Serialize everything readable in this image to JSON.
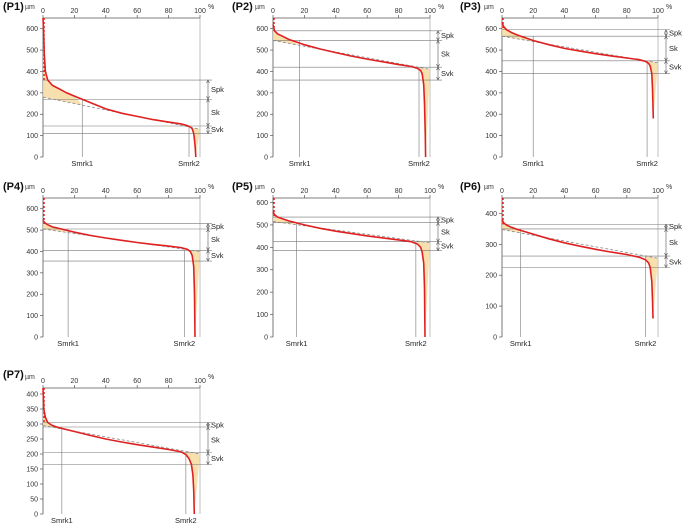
{
  "chart_data": [
    {
      "type": "line",
      "title": "(P1)",
      "ylabel": "µm",
      "xlabel": "%",
      "ylim": [
        0,
        650
      ],
      "yticks": [
        0,
        100,
        200,
        300,
        400,
        500,
        600
      ],
      "xticks": [
        0,
        20,
        40,
        60,
        80,
        100
      ],
      "curve": [
        [
          0,
          650
        ],
        [
          0.3,
          600
        ],
        [
          0.8,
          480
        ],
        [
          1.5,
          400
        ],
        [
          3,
          360
        ],
        [
          6,
          335
        ],
        [
          10,
          320
        ],
        [
          15,
          300
        ],
        [
          20,
          285
        ],
        [
          30,
          255
        ],
        [
          40,
          225
        ],
        [
          50,
          205
        ],
        [
          60,
          190
        ],
        [
          70,
          175
        ],
        [
          80,
          163
        ],
        [
          88,
          155
        ],
        [
          92,
          147
        ],
        [
          94,
          140
        ],
        [
          95,
          132
        ],
        [
          96,
          110
        ],
        [
          96.5,
          80
        ],
        [
          97,
          40
        ],
        [
          97.3,
          0
        ]
      ],
      "line": {
        "start": [
          0,
          280
        ],
        "end": [
          100,
          130
        ]
      },
      "spk": 360,
      "sk_top": 270,
      "sk_bottom": 145,
      "svk": 110,
      "smrk1": 25,
      "smrk2": 93,
      "labels": {
        "spk": "Spk",
        "sk": "Sk",
        "svk": "Svk",
        "smrk1": "Smrk1",
        "smrk2": "Smrk2"
      }
    },
    {
      "type": "line",
      "title": "(P2)",
      "ylabel": "µm",
      "xlabel": "%",
      "ylim": [
        0,
        650
      ],
      "yticks": [
        0,
        100,
        200,
        300,
        400,
        500,
        600
      ],
      "xticks": [
        0,
        20,
        40,
        60,
        80,
        100
      ],
      "curve": [
        [
          0,
          620
        ],
        [
          1,
          590
        ],
        [
          3,
          575
        ],
        [
          6,
          565
        ],
        [
          10,
          550
        ],
        [
          20,
          525
        ],
        [
          30,
          505
        ],
        [
          40,
          488
        ],
        [
          50,
          472
        ],
        [
          60,
          458
        ],
        [
          70,
          445
        ],
        [
          80,
          432
        ],
        [
          88,
          423
        ],
        [
          92,
          415
        ],
        [
          94,
          405
        ],
        [
          95,
          390
        ],
        [
          96,
          340
        ],
        [
          96.5,
          250
        ],
        [
          97,
          100
        ],
        [
          97.2,
          0
        ]
      ],
      "line": {
        "start": [
          0,
          545
        ],
        "end": [
          100,
          410
        ]
      },
      "spk": 590,
      "sk_top": 545,
      "sk_bottom": 420,
      "svk": 360,
      "smrk1": 17,
      "smrk2": 93,
      "labels": {
        "spk": "Spk",
        "sk": "Sk",
        "svk": "Svk",
        "smrk1": "Smrk1",
        "smrk2": "Smrk2"
      }
    },
    {
      "type": "line",
      "title": "(P3)",
      "ylabel": "µm",
      "xlabel": "%",
      "ylim": [
        0,
        650
      ],
      "yticks": [
        0,
        100,
        200,
        300,
        400,
        500,
        600
      ],
      "xticks": [
        0,
        20,
        40,
        60,
        80,
        100
      ],
      "curve": [
        [
          0,
          630
        ],
        [
          1,
          610
        ],
        [
          3,
          595
        ],
        [
          6,
          582
        ],
        [
          10,
          570
        ],
        [
          20,
          545
        ],
        [
          30,
          525
        ],
        [
          40,
          508
        ],
        [
          50,
          495
        ],
        [
          60,
          483
        ],
        [
          70,
          473
        ],
        [
          80,
          463
        ],
        [
          88,
          455
        ],
        [
          92,
          447
        ],
        [
          94,
          438
        ],
        [
          95,
          425
        ],
        [
          96,
          390
        ],
        [
          96.5,
          320
        ],
        [
          97,
          180
        ]
      ],
      "line": {
        "start": [
          0,
          565
        ],
        "end": [
          100,
          440
        ]
      },
      "spk": 595,
      "sk_top": 565,
      "sk_bottom": 450,
      "svk": 390,
      "smrk1": 20,
      "smrk2": 93,
      "labels": {
        "spk": "Spk",
        "sk": "Sk",
        "svk": "Svk",
        "smrk1": "Smrk1",
        "smrk2": "Smrk2"
      }
    },
    {
      "type": "line",
      "title": "(P4)",
      "ylabel": "µm",
      "xlabel": "%",
      "ylim": [
        0,
        650
      ],
      "yticks": [
        0,
        100,
        200,
        300,
        400,
        500,
        600
      ],
      "xticks": [
        0,
        20,
        40,
        60,
        80,
        100
      ],
      "curve": [
        [
          0,
          545
        ],
        [
          1,
          535
        ],
        [
          3,
          525
        ],
        [
          6,
          515
        ],
        [
          10,
          508
        ],
        [
          20,
          490
        ],
        [
          30,
          475
        ],
        [
          40,
          463
        ],
        [
          50,
          452
        ],
        [
          60,
          442
        ],
        [
          70,
          433
        ],
        [
          80,
          425
        ],
        [
          88,
          418
        ],
        [
          92,
          410
        ],
        [
          94,
          398
        ],
        [
          95,
          380
        ],
        [
          96,
          330
        ],
        [
          96.5,
          200
        ],
        [
          96.8,
          0
        ]
      ],
      "line": {
        "start": [
          0,
          505
        ],
        "end": [
          100,
          400
        ]
      },
      "spk": 530,
      "sk_top": 505,
      "sk_bottom": 405,
      "svk": 355,
      "smrk1": 16,
      "smrk2": 90,
      "labels": {
        "spk": "Spk",
        "sk": "Sk",
        "svk": "Svk",
        "smrk1": "Smrk1",
        "smrk2": "Smrk2"
      }
    },
    {
      "type": "line",
      "title": "(P5)",
      "ylabel": "µm",
      "xlabel": "%",
      "ylim": [
        0,
        620
      ],
      "yticks": [
        0,
        100,
        200,
        300,
        400,
        500,
        600
      ],
      "xticks": [
        0,
        20,
        40,
        60,
        80,
        100
      ],
      "curve": [
        [
          0,
          560
        ],
        [
          1,
          545
        ],
        [
          3,
          535
        ],
        [
          6,
          527
        ],
        [
          10,
          518
        ],
        [
          20,
          500
        ],
        [
          30,
          485
        ],
        [
          40,
          472
        ],
        [
          50,
          461
        ],
        [
          60,
          451
        ],
        [
          70,
          442
        ],
        [
          80,
          433
        ],
        [
          88,
          425
        ],
        [
          92,
          415
        ],
        [
          94,
          400
        ],
        [
          95,
          380
        ],
        [
          96,
          330
        ],
        [
          96.5,
          220
        ],
        [
          96.8,
          0
        ]
      ],
      "line": {
        "start": [
          0,
          515
        ],
        "end": [
          100,
          420
        ]
      },
      "spk": 535,
      "sk_top": 510,
      "sk_bottom": 425,
      "svk": 385,
      "smrk1": 15,
      "smrk2": 91,
      "labels": {
        "spk": "Spk",
        "sk": "Sk",
        "svk": "Svk",
        "smrk1": "Smrk1",
        "smrk2": "Smrk2"
      }
    },
    {
      "type": "line",
      "title": "(P6)",
      "ylabel": "µm",
      "xlabel": "%",
      "ylim": [
        0,
        450
      ],
      "yticks": [
        0,
        100,
        200,
        300,
        400
      ],
      "xticks": [
        0,
        20,
        40,
        60,
        80,
        100
      ],
      "curve": [
        [
          0,
          380
        ],
        [
          1,
          370
        ],
        [
          3,
          362
        ],
        [
          6,
          355
        ],
        [
          10,
          348
        ],
        [
          20,
          333
        ],
        [
          30,
          318
        ],
        [
          40,
          305
        ],
        [
          50,
          294
        ],
        [
          60,
          284
        ],
        [
          70,
          275
        ],
        [
          80,
          267
        ],
        [
          88,
          258
        ],
        [
          92,
          250
        ],
        [
          94,
          240
        ],
        [
          95,
          225
        ],
        [
          96,
          180
        ],
        [
          96.5,
          120
        ],
        [
          96.8,
          60
        ]
      ],
      "line": {
        "start": [
          0,
          348
        ],
        "end": [
          100,
          255
        ]
      },
      "spk": 365,
      "sk_top": 350,
      "sk_bottom": 262,
      "svk": 225,
      "smrk1": 12,
      "smrk2": 92,
      "labels": {
        "spk": "Spk",
        "sk": "Sk",
        "svk": "Svk",
        "smrk1": "Smrk1",
        "smrk2": "Smrk2"
      }
    },
    {
      "type": "line",
      "title": "(P7)",
      "ylabel": "µm",
      "xlabel": "%",
      "ylim": [
        0,
        420
      ],
      "yticks": [
        0,
        50,
        100,
        150,
        200,
        250,
        300,
        350,
        400
      ],
      "xticks": [
        0,
        20,
        40,
        60,
        80,
        100
      ],
      "curve": [
        [
          0,
          420
        ],
        [
          0.5,
          350
        ],
        [
          1.5,
          322
        ],
        [
          3,
          305
        ],
        [
          6,
          295
        ],
        [
          10,
          288
        ],
        [
          20,
          275
        ],
        [
          30,
          262
        ],
        [
          40,
          250
        ],
        [
          50,
          240
        ],
        [
          60,
          231
        ],
        [
          70,
          223
        ],
        [
          80,
          215
        ],
        [
          88,
          207
        ],
        [
          91,
          198
        ],
        [
          93,
          185
        ],
        [
          94.5,
          165
        ],
        [
          95.5,
          130
        ],
        [
          96,
          80
        ],
        [
          96.4,
          0
        ]
      ],
      "line": {
        "start": [
          0,
          295
        ],
        "end": [
          100,
          200
        ]
      },
      "spk": 305,
      "sk_top": 290,
      "sk_bottom": 205,
      "svk": 165,
      "smrk1": 12,
      "smrk2": 91,
      "labels": {
        "spk": "Spk",
        "sk": "Sk",
        "svk": "Svk",
        "smrk1": "Smrk1",
        "smrk2": "Smrk2"
      }
    }
  ]
}
